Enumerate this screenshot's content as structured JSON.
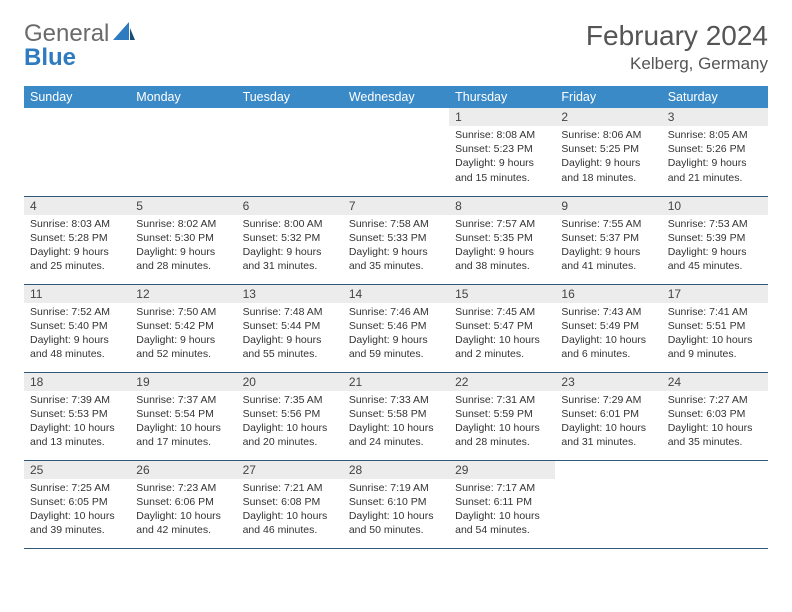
{
  "logo": {
    "general": "General",
    "blue": "Blue"
  },
  "title": "February 2024",
  "location": "Kelberg, Germany",
  "colors": {
    "header_bg": "#3a8ac8",
    "header_text": "#ffffff",
    "daynum_bg": "#ececec",
    "border": "#2f5a7a",
    "logo_gray": "#6a6a6a",
    "logo_blue": "#2f7bbf"
  },
  "day_headers": [
    "Sunday",
    "Monday",
    "Tuesday",
    "Wednesday",
    "Thursday",
    "Friday",
    "Saturday"
  ],
  "weeks": [
    [
      null,
      null,
      null,
      null,
      {
        "n": "1",
        "sr": "8:08 AM",
        "ss": "5:23 PM",
        "dl": "9 hours and 15 minutes."
      },
      {
        "n": "2",
        "sr": "8:06 AM",
        "ss": "5:25 PM",
        "dl": "9 hours and 18 minutes."
      },
      {
        "n": "3",
        "sr": "8:05 AM",
        "ss": "5:26 PM",
        "dl": "9 hours and 21 minutes."
      }
    ],
    [
      {
        "n": "4",
        "sr": "8:03 AM",
        "ss": "5:28 PM",
        "dl": "9 hours and 25 minutes."
      },
      {
        "n": "5",
        "sr": "8:02 AM",
        "ss": "5:30 PM",
        "dl": "9 hours and 28 minutes."
      },
      {
        "n": "6",
        "sr": "8:00 AM",
        "ss": "5:32 PM",
        "dl": "9 hours and 31 minutes."
      },
      {
        "n": "7",
        "sr": "7:58 AM",
        "ss": "5:33 PM",
        "dl": "9 hours and 35 minutes."
      },
      {
        "n": "8",
        "sr": "7:57 AM",
        "ss": "5:35 PM",
        "dl": "9 hours and 38 minutes."
      },
      {
        "n": "9",
        "sr": "7:55 AM",
        "ss": "5:37 PM",
        "dl": "9 hours and 41 minutes."
      },
      {
        "n": "10",
        "sr": "7:53 AM",
        "ss": "5:39 PM",
        "dl": "9 hours and 45 minutes."
      }
    ],
    [
      {
        "n": "11",
        "sr": "7:52 AM",
        "ss": "5:40 PM",
        "dl": "9 hours and 48 minutes."
      },
      {
        "n": "12",
        "sr": "7:50 AM",
        "ss": "5:42 PM",
        "dl": "9 hours and 52 minutes."
      },
      {
        "n": "13",
        "sr": "7:48 AM",
        "ss": "5:44 PM",
        "dl": "9 hours and 55 minutes."
      },
      {
        "n": "14",
        "sr": "7:46 AM",
        "ss": "5:46 PM",
        "dl": "9 hours and 59 minutes."
      },
      {
        "n": "15",
        "sr": "7:45 AM",
        "ss": "5:47 PM",
        "dl": "10 hours and 2 minutes."
      },
      {
        "n": "16",
        "sr": "7:43 AM",
        "ss": "5:49 PM",
        "dl": "10 hours and 6 minutes."
      },
      {
        "n": "17",
        "sr": "7:41 AM",
        "ss": "5:51 PM",
        "dl": "10 hours and 9 minutes."
      }
    ],
    [
      {
        "n": "18",
        "sr": "7:39 AM",
        "ss": "5:53 PM",
        "dl": "10 hours and 13 minutes."
      },
      {
        "n": "19",
        "sr": "7:37 AM",
        "ss": "5:54 PM",
        "dl": "10 hours and 17 minutes."
      },
      {
        "n": "20",
        "sr": "7:35 AM",
        "ss": "5:56 PM",
        "dl": "10 hours and 20 minutes."
      },
      {
        "n": "21",
        "sr": "7:33 AM",
        "ss": "5:58 PM",
        "dl": "10 hours and 24 minutes."
      },
      {
        "n": "22",
        "sr": "7:31 AM",
        "ss": "5:59 PM",
        "dl": "10 hours and 28 minutes."
      },
      {
        "n": "23",
        "sr": "7:29 AM",
        "ss": "6:01 PM",
        "dl": "10 hours and 31 minutes."
      },
      {
        "n": "24",
        "sr": "7:27 AM",
        "ss": "6:03 PM",
        "dl": "10 hours and 35 minutes."
      }
    ],
    [
      {
        "n": "25",
        "sr": "7:25 AM",
        "ss": "6:05 PM",
        "dl": "10 hours and 39 minutes."
      },
      {
        "n": "26",
        "sr": "7:23 AM",
        "ss": "6:06 PM",
        "dl": "10 hours and 42 minutes."
      },
      {
        "n": "27",
        "sr": "7:21 AM",
        "ss": "6:08 PM",
        "dl": "10 hours and 46 minutes."
      },
      {
        "n": "28",
        "sr": "7:19 AM",
        "ss": "6:10 PM",
        "dl": "10 hours and 50 minutes."
      },
      {
        "n": "29",
        "sr": "7:17 AM",
        "ss": "6:11 PM",
        "dl": "10 hours and 54 minutes."
      },
      null,
      null
    ]
  ],
  "labels": {
    "sunrise": "Sunrise: ",
    "sunset": "Sunset: ",
    "daylight": "Daylight: "
  }
}
